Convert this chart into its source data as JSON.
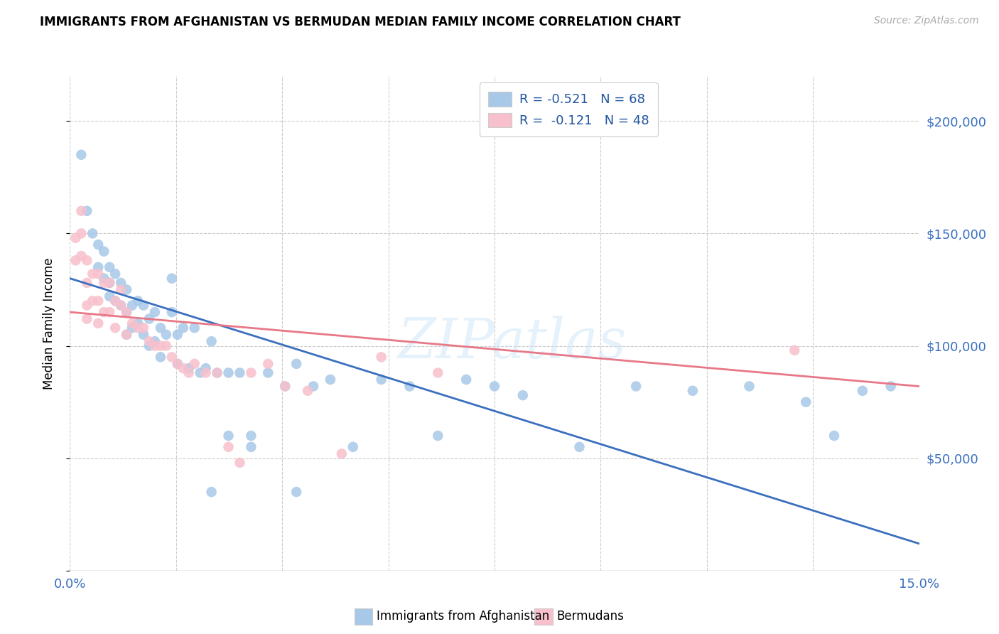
{
  "title": "IMMIGRANTS FROM AFGHANISTAN VS BERMUDAN MEDIAN FAMILY INCOME CORRELATION CHART",
  "source": "Source: ZipAtlas.com",
  "ylabel": "Median Family Income",
  "xlim": [
    0.0,
    0.15
  ],
  "ylim": [
    0,
    220000
  ],
  "watermark": "ZIPatlas",
  "blue_color": "#a8c8e8",
  "blue_line_color": "#3a6fbf",
  "pink_color": "#f8c0cc",
  "pink_line_color": "#e87888",
  "blue_scatter_x": [
    0.002,
    0.003,
    0.004,
    0.005,
    0.005,
    0.006,
    0.006,
    0.007,
    0.007,
    0.007,
    0.008,
    0.008,
    0.009,
    0.009,
    0.01,
    0.01,
    0.01,
    0.011,
    0.011,
    0.012,
    0.012,
    0.013,
    0.013,
    0.014,
    0.014,
    0.015,
    0.015,
    0.016,
    0.016,
    0.017,
    0.018,
    0.018,
    0.019,
    0.019,
    0.02,
    0.021,
    0.022,
    0.023,
    0.024,
    0.025,
    0.026,
    0.028,
    0.03,
    0.032,
    0.035,
    0.038,
    0.04,
    0.043,
    0.046,
    0.05,
    0.055,
    0.06,
    0.065,
    0.07,
    0.075,
    0.08,
    0.09,
    0.1,
    0.11,
    0.12,
    0.13,
    0.135,
    0.14,
    0.145,
    0.04,
    0.025,
    0.028,
    0.032
  ],
  "blue_scatter_y": [
    185000,
    160000,
    150000,
    145000,
    135000,
    142000,
    130000,
    135000,
    128000,
    122000,
    132000,
    120000,
    128000,
    118000,
    125000,
    115000,
    105000,
    118000,
    108000,
    120000,
    110000,
    118000,
    105000,
    112000,
    100000,
    115000,
    102000,
    108000,
    95000,
    105000,
    130000,
    115000,
    105000,
    92000,
    108000,
    90000,
    108000,
    88000,
    90000,
    102000,
    88000,
    88000,
    88000,
    60000,
    88000,
    82000,
    92000,
    82000,
    85000,
    55000,
    85000,
    82000,
    60000,
    85000,
    82000,
    78000,
    55000,
    82000,
    80000,
    82000,
    75000,
    60000,
    80000,
    82000,
    35000,
    35000,
    60000,
    55000
  ],
  "pink_scatter_x": [
    0.001,
    0.001,
    0.002,
    0.002,
    0.002,
    0.003,
    0.003,
    0.003,
    0.003,
    0.004,
    0.004,
    0.005,
    0.005,
    0.005,
    0.006,
    0.006,
    0.007,
    0.007,
    0.008,
    0.008,
    0.009,
    0.009,
    0.01,
    0.01,
    0.011,
    0.012,
    0.013,
    0.014,
    0.015,
    0.016,
    0.017,
    0.018,
    0.019,
    0.02,
    0.021,
    0.022,
    0.024,
    0.026,
    0.028,
    0.03,
    0.032,
    0.035,
    0.038,
    0.042,
    0.048,
    0.055,
    0.065,
    0.128
  ],
  "pink_scatter_y": [
    148000,
    138000,
    160000,
    150000,
    140000,
    138000,
    128000,
    118000,
    112000,
    132000,
    120000,
    132000,
    120000,
    110000,
    128000,
    115000,
    128000,
    115000,
    120000,
    108000,
    125000,
    118000,
    115000,
    105000,
    110000,
    108000,
    108000,
    102000,
    100000,
    100000,
    100000,
    95000,
    92000,
    90000,
    88000,
    92000,
    88000,
    88000,
    55000,
    48000,
    88000,
    92000,
    82000,
    80000,
    52000,
    95000,
    88000,
    98000
  ],
  "blue_line_x0": 0.0,
  "blue_line_y0": 130000,
  "blue_line_x1": 0.15,
  "blue_line_y1": 12000,
  "pink_line_x0": 0.0,
  "pink_line_y0": 115000,
  "pink_line_x1": 0.15,
  "pink_line_y1": 82000,
  "legend_label1": "Immigrants from Afghanistan",
  "legend_label2": "Bermudans"
}
